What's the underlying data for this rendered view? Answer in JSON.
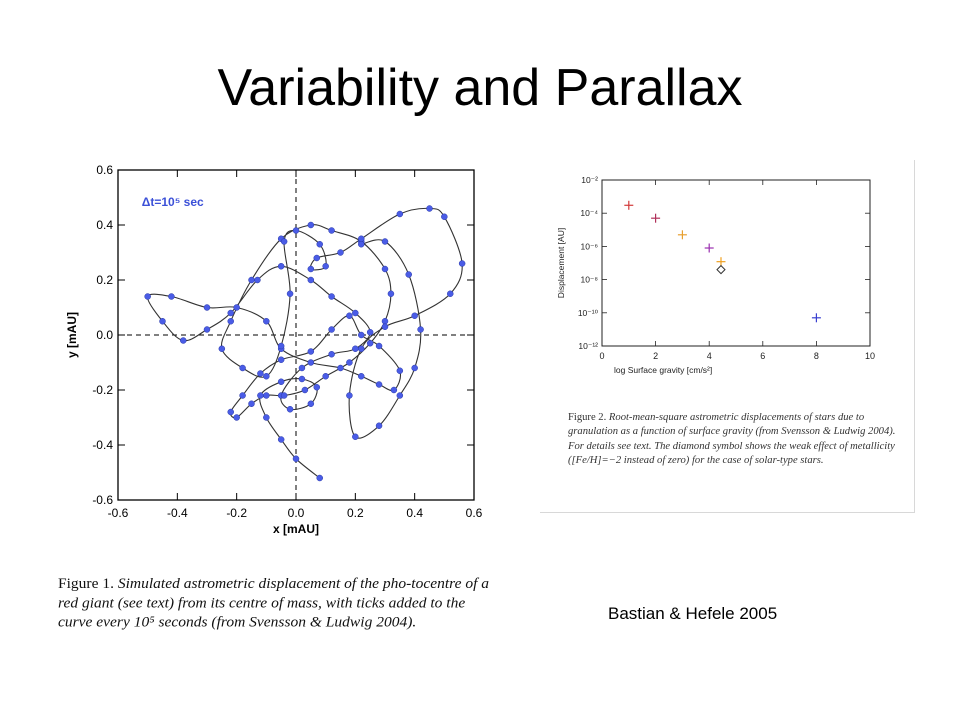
{
  "title": "Variability and Parallax",
  "credit": "Bastian & Hefele 2005",
  "figure1": {
    "caption_label": "Figure 1.",
    "caption_text": "Simulated astrometric displacement of the pho-tocentre of a red giant (see text) from its centre of mass, with ticks added to the curve every 10⁵ seconds (from Svensson & Ludwig 2004).",
    "annotation": "Δt=10⁵ sec",
    "annotation_color": "#3b50d8",
    "marker_color": "#4a5ce6",
    "chart_data": {
      "type": "line",
      "xlabel": "x [mAU]",
      "ylabel": "y [mAU]",
      "xlim": [
        -0.6,
        0.6
      ],
      "ylim": [
        -0.6,
        0.6
      ],
      "xticks": [
        "-0.6",
        "-0.4",
        "-0.2",
        "0.0",
        "0.2",
        "0.4",
        "0.6"
      ],
      "yticks": [
        "-0.6",
        "-0.4",
        "-0.2",
        "0.0",
        "0.2",
        "0.4",
        "0.6"
      ],
      "reference_lines": {
        "x": 0.0,
        "y": 0.0,
        "style": "dashed"
      },
      "series": [
        {
          "x": [
            0.08,
            0.0,
            -0.05,
            -0.1,
            -0.12,
            -0.05,
            0.02,
            0.07,
            0.05,
            -0.02,
            -0.05,
            0.02,
            0.12,
            0.2,
            0.25,
            0.2,
            0.12,
            0.05,
            -0.05,
            -0.13,
            -0.22,
            -0.3,
            -0.38,
            -0.45,
            -0.5,
            -0.42,
            -0.3,
            -0.2,
            -0.1,
            -0.05,
            0.05,
            0.15,
            0.22,
            0.28,
            0.33,
            0.35,
            0.28,
            0.22,
            0.18,
            0.12,
            0.05,
            -0.05,
            -0.12,
            -0.18,
            -0.22,
            -0.2,
            -0.15,
            -0.1,
            -0.04,
            0.03,
            0.1,
            0.18,
            0.25,
            0.3,
            0.32,
            0.3,
            0.22,
            0.12,
            0.05,
            -0.05,
            -0.15,
            -0.22,
            -0.25,
            -0.18,
            -0.1,
            -0.05,
            -0.02,
            -0.04,
            0.0,
            0.08,
            0.1,
            0.05,
            0.07,
            0.15,
            0.22,
            0.35,
            0.45,
            0.5,
            0.56,
            0.52,
            0.4,
            0.3,
            0.22,
            0.18,
            0.2,
            0.28,
            0.35,
            0.4,
            0.42,
            0.38,
            0.3,
            0.22
          ],
          "y": [
            -0.52,
            -0.45,
            -0.38,
            -0.3,
            -0.22,
            -0.17,
            -0.16,
            -0.19,
            -0.25,
            -0.27,
            -0.22,
            -0.12,
            -0.07,
            -0.05,
            0.01,
            0.08,
            0.14,
            0.2,
            0.25,
            0.2,
            0.08,
            0.02,
            -0.02,
            0.05,
            0.14,
            0.14,
            0.1,
            0.1,
            0.05,
            -0.05,
            -0.1,
            -0.12,
            -0.15,
            -0.18,
            -0.2,
            -0.13,
            -0.04,
            0.0,
            0.07,
            0.02,
            -0.06,
            -0.09,
            -0.14,
            -0.22,
            -0.28,
            -0.3,
            -0.25,
            -0.22,
            -0.22,
            -0.2,
            -0.15,
            -0.1,
            -0.03,
            0.05,
            0.15,
            0.24,
            0.34,
            0.38,
            0.4,
            0.35,
            0.2,
            0.05,
            -0.05,
            -0.12,
            -0.15,
            -0.04,
            0.15,
            0.34,
            0.38,
            0.33,
            0.25,
            0.24,
            0.28,
            0.3,
            0.35,
            0.44,
            0.46,
            0.43,
            0.26,
            0.15,
            0.07,
            0.03,
            -0.05,
            -0.22,
            -0.37,
            -0.33,
            -0.22,
            -0.12,
            0.02,
            0.22,
            0.34,
            0.33
          ]
        }
      ]
    }
  },
  "figure2": {
    "caption_label": "Figure 2.",
    "caption_text": "Root-mean-square astrometric displacements of stars due to granulation as a function of surface gravity (from Svensson & Ludwig 2004). For details see text. The diamond symbol shows the weak effect of metallicity ([Fe/H]=−2 instead of zero) for the case of solar-type stars.",
    "chart_data": {
      "type": "scatter",
      "xlabel": "log Surface gravity [cm/s²]",
      "ylabel": "Displacement [AU]",
      "xlim": [
        0,
        10
      ],
      "ylim_exponent": [
        -12,
        -2
      ],
      "y_scale": "log",
      "xticks": [
        "0",
        "2",
        "4",
        "6",
        "8",
        "10"
      ],
      "yticks": [
        "10⁻²",
        "10⁻⁴",
        "10⁻⁶",
        "10⁻⁸",
        "10⁻¹⁰",
        "10⁻¹²"
      ],
      "points": [
        {
          "x": 1.0,
          "y": 0.0003,
          "marker": "plus",
          "color": "#d23a3a"
        },
        {
          "x": 2.0,
          "y": 5e-05,
          "marker": "plus",
          "color": "#b0305a"
        },
        {
          "x": 3.0,
          "y": 5e-06,
          "marker": "plus",
          "color": "#e8a030"
        },
        {
          "x": 4.0,
          "y": 8e-07,
          "marker": "plus",
          "color": "#9a30b0"
        },
        {
          "x": 4.44,
          "y": 1.2e-07,
          "marker": "plus",
          "color": "#f0a020"
        },
        {
          "x": 4.44,
          "y": 4e-08,
          "marker": "diamond",
          "color": "#333333"
        },
        {
          "x": 8.0,
          "y": 5e-11,
          "marker": "plus",
          "color": "#3a40d0"
        }
      ]
    }
  }
}
